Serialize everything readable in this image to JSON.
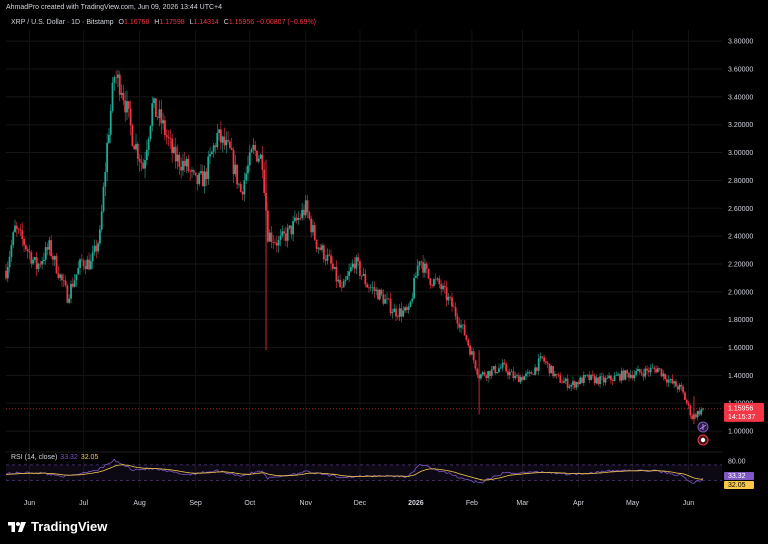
{
  "header": {
    "text": "AhmadPro created with TradingView.com, Jun 09, 2026 13:44 UTC+4"
  },
  "legend": {
    "symbol": "XRP / U.S. Dollar · 1D · Bitstamp",
    "open_label": "O",
    "open": "1.16768",
    "high_label": "H",
    "high": "1.17598",
    "low_label": "L",
    "low": "1.14314",
    "close_label": "C",
    "close": "1.15956",
    "change": "−0.00807 (−0.69%)"
  },
  "rsi_legend": {
    "label": "RSI (14, close)",
    "rsi": "33.32",
    "ma": "32.05"
  },
  "footer": {
    "brand": "TradingView"
  },
  "colors": {
    "up": "#22ab94",
    "down": "#f23645",
    "rsi": "#7e57c2",
    "rsi_ma": "#f7c948",
    "background": "#000000"
  },
  "chart_data": {
    "type": "candlestick",
    "price_axis": {
      "ticks": [
        "1.00000",
        "1.20000",
        "1.40000",
        "1.60000",
        "1.80000",
        "2.00000",
        "2.20000",
        "2.40000",
        "2.60000",
        "2.80000",
        "3.00000",
        "3.20000",
        "3.40000",
        "3.60000",
        "3.80000"
      ],
      "range": [
        0.9,
        3.88
      ]
    },
    "time_axis": {
      "ticks": [
        "Jun",
        "Jul",
        "Aug",
        "Sep",
        "Oct",
        "Nov",
        "Dec",
        "2026",
        "Feb",
        "Mar",
        "Apr",
        "May",
        "Jun"
      ]
    },
    "last_price": {
      "value": 1.15956,
      "label": "1.15956",
      "countdown": "14:15:37"
    },
    "price_path": [
      [
        "2025-05-19",
        2.15
      ],
      [
        "2025-05-24",
        2.45
      ],
      [
        "2025-05-29",
        2.35
      ],
      [
        "2025-06-05",
        2.18
      ],
      [
        "2025-06-12",
        2.32
      ],
      [
        "2025-06-22",
        1.97
      ],
      [
        "2025-06-30",
        2.22
      ],
      [
        "2025-07-05",
        2.2
      ],
      [
        "2025-07-10",
        2.4
      ],
      [
        "2025-07-14",
        3.05
      ],
      [
        "2025-07-18",
        3.55
      ],
      [
        "2025-07-22",
        3.48
      ],
      [
        "2025-07-28",
        3.12
      ],
      [
        "2025-08-03",
        2.9
      ],
      [
        "2025-08-08",
        3.33
      ],
      [
        "2025-08-13",
        3.22
      ],
      [
        "2025-08-20",
        2.97
      ],
      [
        "2025-08-27",
        2.9
      ],
      [
        "2025-09-01",
        2.78
      ],
      [
        "2025-09-06",
        2.82
      ],
      [
        "2025-09-13",
        3.12
      ],
      [
        "2025-09-20",
        3.0
      ],
      [
        "2025-09-26",
        2.72
      ],
      [
        "2025-10-03",
        3.02
      ],
      [
        "2025-10-08",
        2.95
      ],
      [
        "2025-10-11",
        2.42
      ],
      [
        "2025-10-17",
        2.35
      ],
      [
        "2025-10-24",
        2.45
      ],
      [
        "2025-11-01",
        2.6
      ],
      [
        "2025-11-07",
        2.35
      ],
      [
        "2025-11-14",
        2.22
      ],
      [
        "2025-11-21",
        2.0
      ],
      [
        "2025-11-28",
        2.22
      ],
      [
        "2025-12-05",
        2.05
      ],
      [
        "2025-12-12",
        1.98
      ],
      [
        "2025-12-20",
        1.86
      ],
      [
        "2025-12-28",
        1.85
      ],
      [
        "2026-01-03",
        2.25
      ],
      [
        "2026-01-08",
        2.1
      ],
      [
        "2026-01-14",
        2.05
      ],
      [
        "2026-01-21",
        1.9
      ],
      [
        "2026-01-28",
        1.7
      ],
      [
        "2026-02-05",
        1.4
      ],
      [
        "2026-02-10",
        1.42
      ],
      [
        "2026-02-18",
        1.46
      ],
      [
        "2026-02-25",
        1.38
      ],
      [
        "2026-03-05",
        1.4
      ],
      [
        "2026-03-12",
        1.52
      ],
      [
        "2026-03-20",
        1.38
      ],
      [
        "2026-03-28",
        1.33
      ],
      [
        "2026-04-05",
        1.38
      ],
      [
        "2026-04-15",
        1.36
      ],
      [
        "2026-04-25",
        1.4
      ],
      [
        "2026-05-05",
        1.42
      ],
      [
        "2026-05-15",
        1.45
      ],
      [
        "2026-05-22",
        1.35
      ],
      [
        "2026-05-28",
        1.3
      ],
      [
        "2026-06-03",
        1.1
      ],
      [
        "2026-06-09",
        1.16
      ]
    ],
    "rsi": {
      "levels": [
        "80.00",
        "33.32",
        "32.05"
      ],
      "path": [
        [
          "2025-05-19",
          48
        ],
        [
          "2025-06-05",
          50
        ],
        [
          "2025-06-22",
          40
        ],
        [
          "2025-07-10",
          60
        ],
        [
          "2025-07-18",
          82
        ],
        [
          "2025-07-28",
          58
        ],
        [
          "2025-08-08",
          60
        ],
        [
          "2025-08-27",
          45
        ],
        [
          "2025-09-13",
          55
        ],
        [
          "2025-09-26",
          42
        ],
        [
          "2025-10-08",
          55
        ],
        [
          "2025-10-11",
          35
        ],
        [
          "2025-11-01",
          52
        ],
        [
          "2025-11-21",
          38
        ],
        [
          "2025-12-12",
          42
        ],
        [
          "2025-12-28",
          40
        ],
        [
          "2026-01-03",
          72
        ],
        [
          "2026-01-21",
          44
        ],
        [
          "2026-02-05",
          22
        ],
        [
          "2026-02-18",
          48
        ],
        [
          "2026-03-12",
          52
        ],
        [
          "2026-03-28",
          46
        ],
        [
          "2026-04-25",
          56
        ],
        [
          "2026-05-15",
          54
        ],
        [
          "2026-05-28",
          42
        ],
        [
          "2026-06-03",
          22
        ],
        [
          "2026-06-09",
          33
        ]
      ]
    }
  }
}
